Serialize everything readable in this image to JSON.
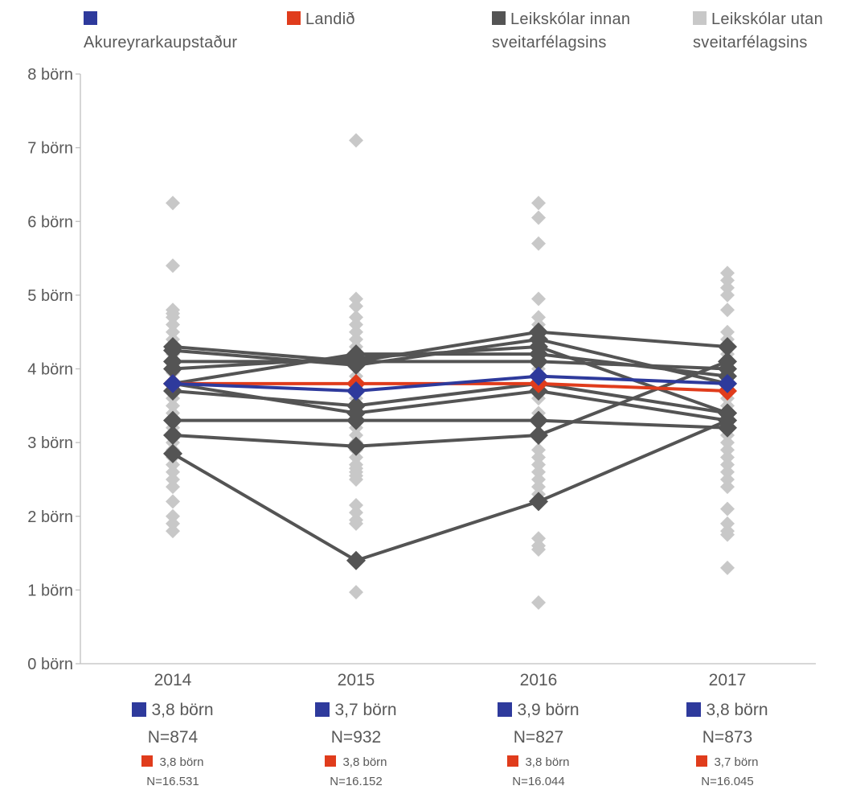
{
  "chart_data": {
    "type": "line",
    "categories": [
      "2014",
      "2015",
      "2016",
      "2017"
    ],
    "y_unit": "börn",
    "ylim": [
      0,
      8
    ],
    "yticks": [
      "0 börn",
      "1 börn",
      "2 börn",
      "3 börn",
      "4 börn",
      "5 börn",
      "6 börn",
      "7 börn",
      "8 börn"
    ],
    "legend": [
      {
        "label": "Akureyrarkaupstaður",
        "color": "#2e3a9c"
      },
      {
        "label": "Landið",
        "color": "#e03c1c"
      },
      {
        "label": "Leikskólar innan sveitarfélagsins",
        "color": "#545454"
      },
      {
        "label": "Leikskólar utan sveitarfélagsins",
        "color": "#c8c8c8"
      }
    ],
    "series": [
      {
        "name": "Akureyrarkaupstaður",
        "color": "#2e3a9c",
        "values": [
          3.8,
          3.7,
          3.9,
          3.8
        ]
      },
      {
        "name": "Landið",
        "color": "#e03c1c",
        "values": [
          3.8,
          3.8,
          3.8,
          3.7
        ]
      }
    ],
    "inside_schools": [
      [
        4.3,
        4.1,
        4.5,
        4.3
      ],
      [
        4.25,
        4.05,
        4.4,
        3.8
      ],
      [
        4.1,
        4.1,
        4.1,
        4.0
      ],
      [
        4.0,
        4.15,
        4.3,
        3.4
      ],
      [
        3.8,
        4.2,
        4.2,
        3.9
      ],
      [
        3.7,
        3.5,
        3.8,
        3.4
      ],
      [
        3.8,
        3.4,
        3.7,
        3.3
      ],
      [
        3.3,
        3.3,
        3.3,
        3.2
      ],
      [
        3.1,
        2.95,
        3.1,
        4.1
      ],
      [
        2.85,
        1.4,
        2.2,
        3.3
      ]
    ],
    "outside_schools": [
      [
        6.25,
        5.4,
        4.8,
        4.75,
        4.7,
        4.6,
        4.5,
        4.4,
        4.3,
        4.2,
        4.1,
        3.95,
        3.7,
        3.6,
        3.5,
        3.4,
        3.3,
        3.2,
        3.1,
        3.0,
        2.9,
        2.8,
        2.7,
        2.6,
        2.5,
        2.4,
        2.2,
        2.0,
        1.9,
        1.8
      ],
      [
        7.1,
        4.95,
        4.85,
        4.7,
        4.6,
        4.5,
        4.4,
        4.3,
        4.2,
        4.1,
        3.9,
        3.8,
        3.6,
        3.5,
        3.4,
        3.3,
        3.2,
        3.1,
        3.0,
        2.9,
        2.8,
        2.7,
        2.65,
        2.6,
        2.55,
        2.5,
        2.15,
        2.05,
        1.95,
        1.9,
        0.97
      ],
      [
        6.25,
        6.05,
        5.7,
        4.95,
        4.7,
        4.6,
        4.5,
        4.4,
        4.2,
        4.0,
        3.8,
        3.6,
        3.4,
        3.3,
        3.1,
        2.9,
        2.8,
        2.7,
        2.6,
        2.5,
        2.4,
        2.3,
        2.2,
        1.7,
        1.6,
        1.55,
        0.83
      ],
      [
        5.3,
        5.2,
        5.1,
        5.0,
        4.8,
        4.5,
        4.4,
        4.2,
        4.0,
        3.9,
        3.7,
        3.6,
        3.5,
        3.1,
        3.0,
        2.9,
        2.8,
        2.7,
        2.6,
        2.5,
        2.4,
        2.1,
        1.9,
        1.8,
        1.75,
        1.3
      ]
    ],
    "footer": [
      {
        "value": "3,8 börn",
        "n": "N=874",
        "country_value": "3,8 börn",
        "country_n": "N=16.531"
      },
      {
        "value": "3,7 börn",
        "n": "N=932",
        "country_value": "3,8 börn",
        "country_n": "N=16.152"
      },
      {
        "value": "3,9 börn",
        "n": "N=827",
        "country_value": "3,8 börn",
        "country_n": "N=16.044"
      },
      {
        "value": "3,8 börn",
        "n": "N=873",
        "country_value": "3,7 börn",
        "country_n": "N=16.045"
      }
    ]
  }
}
